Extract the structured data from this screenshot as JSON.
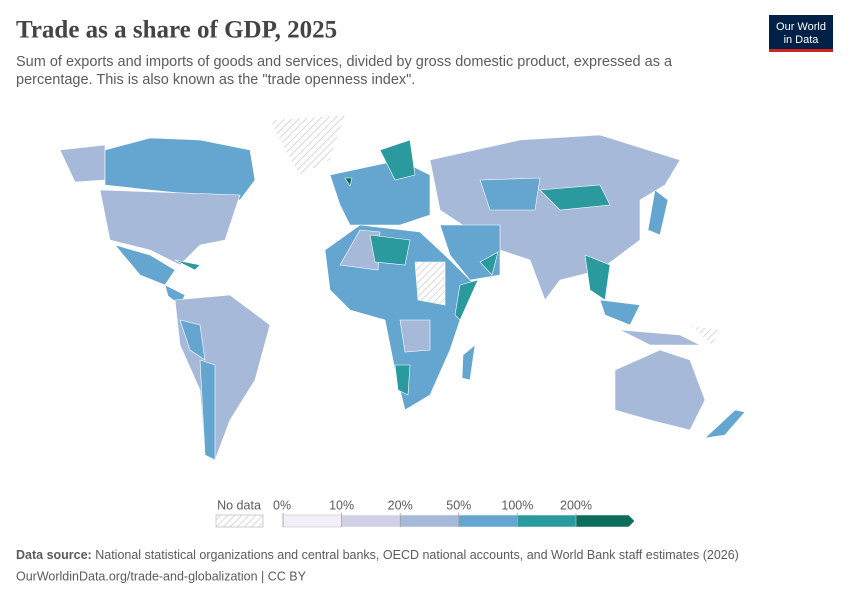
{
  "header": {
    "title": "Trade as a share of GDP, 2025",
    "subtitle_line_1": "Sum of exports and imports of goods and services, divided by gross domestic product, expressed as a",
    "subtitle_line_2": "percentage. This is also known as the \"trade openness index\".",
    "logo_line_1": "Our World",
    "logo_line_2": "in Data"
  },
  "legend": {
    "no_data": "No data",
    "ticks": [
      {
        "value": 0,
        "label": "0%"
      },
      {
        "value": 10,
        "label": "10%"
      },
      {
        "value": 20,
        "label": "20%"
      },
      {
        "value": 50,
        "label": "50%"
      },
      {
        "value": 100,
        "label": "100%"
      },
      {
        "value": 200,
        "label": "200%"
      }
    ],
    "colors": [
      "#f3eef8",
      "#cfcfe6",
      "#a6b9d8",
      "#64a6d0",
      "#2a9a9e",
      "#0a6e5b"
    ]
  },
  "footer": {
    "source_label": "Data source:",
    "source_text": "National statistical organizations and central banks, OECD national accounts, and World Bank staff estimates (2026)",
    "url": "OurWorldinData.org/trade-and-globalization | CC BY"
  }
}
